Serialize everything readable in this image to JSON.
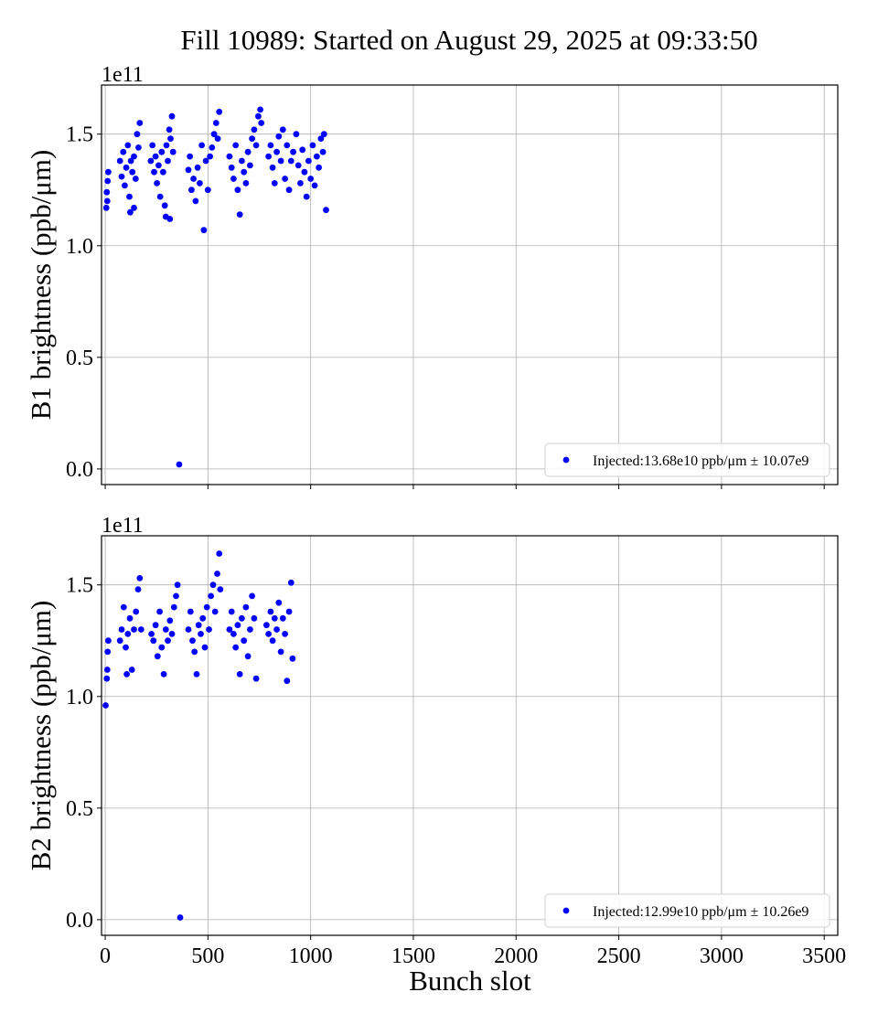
{
  "chart_data": {
    "type": "scatter",
    "title": "Fill 10989: Started on August 29, 2025 at 09:33:50",
    "xlabel": "Bunch slot",
    "xlim": [
      -18,
      3566
    ],
    "xticks": [
      0,
      500,
      1000,
      1500,
      2000,
      2500,
      3000,
      3500
    ],
    "xtick_labels": [
      "0",
      "500",
      "1000",
      "1500",
      "2000",
      "2500",
      "3000",
      "3500"
    ],
    "grid": true,
    "marker_color": "#0000ff",
    "panels": [
      {
        "ylabel": "B1 brightness (ppb/μm)",
        "offset_label": "1e11",
        "ylim": [
          -0.07,
          1.72
        ],
        "yticks": [
          0.0,
          0.5,
          1.0,
          1.5
        ],
        "ytick_labels": [
          "0.0",
          "0.5",
          "1.0",
          "1.5"
        ],
        "legend": {
          "label": "Injected:13.68e10 ppb/μm ± 10.07e9",
          "placement": "lower-right"
        },
        "points": [
          [
            5,
            1.17
          ],
          [
            8,
            1.24
          ],
          [
            10,
            1.2
          ],
          [
            12,
            1.29
          ],
          [
            15,
            1.33
          ],
          [
            72,
            1.38
          ],
          [
            80,
            1.31
          ],
          [
            88,
            1.42
          ],
          [
            95,
            1.27
          ],
          [
            102,
            1.35
          ],
          [
            110,
            1.45
          ],
          [
            118,
            1.22
          ],
          [
            122,
            1.15
          ],
          [
            125,
            1.38
          ],
          [
            132,
            1.33
          ],
          [
            140,
            1.4
          ],
          [
            140,
            1.17
          ],
          [
            148,
            1.3
          ],
          [
            155,
            1.5
          ],
          [
            162,
            1.44
          ],
          [
            168,
            1.55
          ],
          [
            222,
            1.38
          ],
          [
            230,
            1.45
          ],
          [
            238,
            1.33
          ],
          [
            245,
            1.4
          ],
          [
            252,
            1.28
          ],
          [
            260,
            1.36
          ],
          [
            268,
            1.22
          ],
          [
            275,
            1.42
          ],
          [
            282,
            1.33
          ],
          [
            290,
            1.18
          ],
          [
            295,
            1.13
          ],
          [
            298,
            1.45
          ],
          [
            305,
            1.38
          ],
          [
            312,
            1.52
          ],
          [
            315,
            1.12
          ],
          [
            318,
            1.48
          ],
          [
            325,
            1.58
          ],
          [
            330,
            1.42
          ],
          [
            360,
            0.02
          ],
          [
            405,
            1.34
          ],
          [
            412,
            1.4
          ],
          [
            420,
            1.25
          ],
          [
            430,
            1.3
          ],
          [
            440,
            1.2
          ],
          [
            450,
            1.35
          ],
          [
            460,
            1.28
          ],
          [
            470,
            1.45
          ],
          [
            480,
            1.07
          ],
          [
            490,
            1.38
          ],
          [
            500,
            1.25
          ],
          [
            510,
            1.4
          ],
          [
            520,
            1.44
          ],
          [
            530,
            1.5
          ],
          [
            540,
            1.55
          ],
          [
            548,
            1.48
          ],
          [
            555,
            1.6
          ],
          [
            605,
            1.4
          ],
          [
            615,
            1.35
          ],
          [
            625,
            1.3
          ],
          [
            635,
            1.45
          ],
          [
            645,
            1.25
          ],
          [
            655,
            1.14
          ],
          [
            665,
            1.38
          ],
          [
            675,
            1.33
          ],
          [
            685,
            1.28
          ],
          [
            695,
            1.42
          ],
          [
            705,
            1.36
          ],
          [
            715,
            1.48
          ],
          [
            725,
            1.52
          ],
          [
            735,
            1.45
          ],
          [
            745,
            1.58
          ],
          [
            755,
            1.61
          ],
          [
            760,
            1.55
          ],
          [
            795,
            1.4
          ],
          [
            805,
            1.45
          ],
          [
            815,
            1.35
          ],
          [
            825,
            1.28
          ],
          [
            835,
            1.42
          ],
          [
            845,
            1.49
          ],
          [
            855,
            1.38
          ],
          [
            865,
            1.52
          ],
          [
            875,
            1.3
          ],
          [
            885,
            1.45
          ],
          [
            895,
            1.25
          ],
          [
            905,
            1.38
          ],
          [
            915,
            1.42
          ],
          [
            930,
            1.5
          ],
          [
            940,
            1.36
          ],
          [
            950,
            1.28
          ],
          [
            960,
            1.43
          ],
          [
            970,
            1.33
          ],
          [
            980,
            1.22
          ],
          [
            990,
            1.38
          ],
          [
            1000,
            1.3
          ],
          [
            1010,
            1.45
          ],
          [
            1020,
            1.27
          ],
          [
            1030,
            1.4
          ],
          [
            1040,
            1.35
          ],
          [
            1050,
            1.48
          ],
          [
            1060,
            1.42
          ],
          [
            1065,
            1.5
          ],
          [
            1075,
            1.16
          ]
        ]
      },
      {
        "ylabel": "B2 brightness (ppb/μm)",
        "offset_label": "1e11",
        "ylim": [
          -0.07,
          1.72
        ],
        "yticks": [
          0.0,
          0.5,
          1.0,
          1.5
        ],
        "ytick_labels": [
          "0.0",
          "0.5",
          "1.0",
          "1.5"
        ],
        "legend": {
          "label": "Injected:12.99e10 ppb/μm ± 10.26e9",
          "placement": "lower-right"
        },
        "points": [
          [
            2,
            0.96
          ],
          [
            8,
            1.08
          ],
          [
            10,
            1.12
          ],
          [
            12,
            1.2
          ],
          [
            15,
            1.25
          ],
          [
            72,
            1.25
          ],
          [
            80,
            1.3
          ],
          [
            90,
            1.4
          ],
          [
            100,
            1.22
          ],
          [
            105,
            1.1
          ],
          [
            110,
            1.28
          ],
          [
            120,
            1.35
          ],
          [
            130,
            1.12
          ],
          [
            140,
            1.3
          ],
          [
            150,
            1.38
          ],
          [
            160,
            1.48
          ],
          [
            168,
            1.53
          ],
          [
            175,
            1.3
          ],
          [
            225,
            1.28
          ],
          [
            235,
            1.25
          ],
          [
            245,
            1.32
          ],
          [
            255,
            1.18
          ],
          [
            265,
            1.38
          ],
          [
            275,
            1.22
          ],
          [
            285,
            1.1
          ],
          [
            295,
            1.3
          ],
          [
            305,
            1.25
          ],
          [
            315,
            1.34
          ],
          [
            325,
            1.28
          ],
          [
            335,
            1.4
          ],
          [
            345,
            1.45
          ],
          [
            352,
            1.5
          ],
          [
            365,
            0.01
          ],
          [
            405,
            1.3
          ],
          [
            415,
            1.38
          ],
          [
            425,
            1.25
          ],
          [
            435,
            1.2
          ],
          [
            445,
            1.1
          ],
          [
            455,
            1.32
          ],
          [
            465,
            1.28
          ],
          [
            475,
            1.35
          ],
          [
            485,
            1.22
          ],
          [
            495,
            1.4
          ],
          [
            505,
            1.3
          ],
          [
            515,
            1.45
          ],
          [
            525,
            1.5
          ],
          [
            535,
            1.38
          ],
          [
            545,
            1.55
          ],
          [
            555,
            1.64
          ],
          [
            560,
            1.48
          ],
          [
            605,
            1.3
          ],
          [
            615,
            1.38
          ],
          [
            625,
            1.28
          ],
          [
            635,
            1.22
          ],
          [
            645,
            1.32
          ],
          [
            655,
            1.1
          ],
          [
            665,
            1.35
          ],
          [
            675,
            1.25
          ],
          [
            685,
            1.4
          ],
          [
            695,
            1.18
          ],
          [
            705,
            1.3
          ],
          [
            715,
            1.45
          ],
          [
            725,
            1.35
          ],
          [
            735,
            1.08
          ],
          [
            785,
            1.32
          ],
          [
            795,
            1.28
          ],
          [
            805,
            1.38
          ],
          [
            815,
            1.25
          ],
          [
            825,
            1.35
          ],
          [
            835,
            1.3
          ],
          [
            845,
            1.42
          ],
          [
            855,
            1.2
          ],
          [
            865,
            1.35
          ],
          [
            875,
            1.28
          ],
          [
            885,
            1.07
          ],
          [
            895,
            1.38
          ],
          [
            905,
            1.51
          ],
          [
            912,
            1.17
          ]
        ]
      }
    ]
  }
}
